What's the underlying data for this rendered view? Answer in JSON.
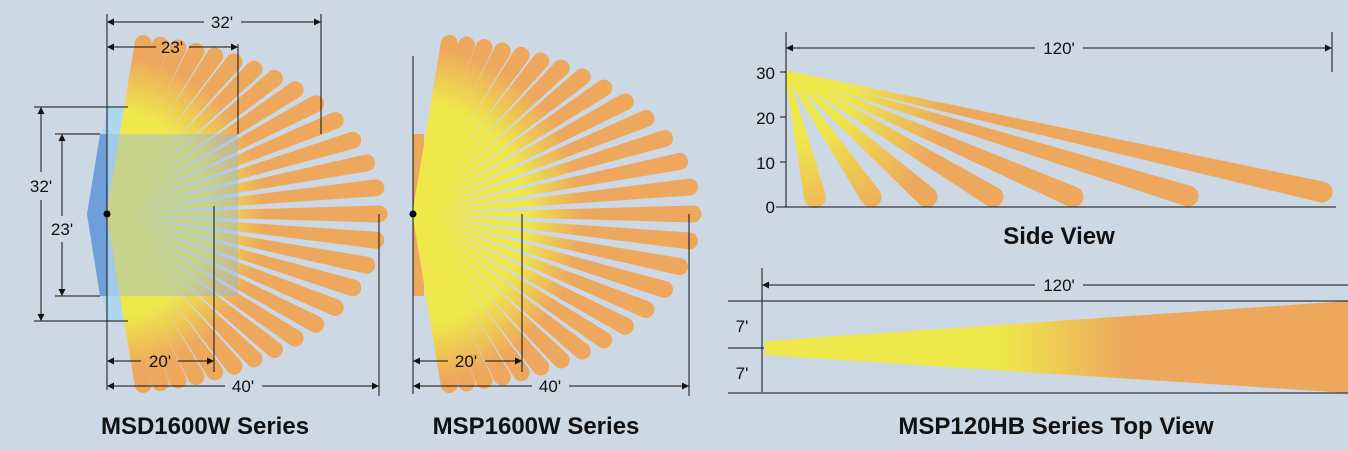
{
  "diagrams": {
    "msd": {
      "title": "MSD1600W Series",
      "top_outer": "32'",
      "top_inner": "23'",
      "side_outer": "32'",
      "side_inner": "23'",
      "bottom_inner": "20'",
      "bottom_outer": "40'"
    },
    "msp": {
      "title": "MSP1600W Series",
      "bottom_inner": "20'",
      "bottom_outer": "40'"
    },
    "hb": {
      "side": {
        "length": "120'",
        "ticks": [
          "30",
          "20",
          "10",
          "0"
        ],
        "caption": "Side View"
      },
      "top": {
        "length": "120'",
        "upper_width": "7'",
        "lower_width": "7'"
      },
      "title": "MSP120HB Series Top View"
    }
  },
  "colors": {
    "background": "#cdd8e5",
    "beam_outer": "#eda85e",
    "beam_inner": "#efe84a",
    "coverage_light": "#a9d7ee",
    "coverage_dark": "#6f9fd8"
  }
}
